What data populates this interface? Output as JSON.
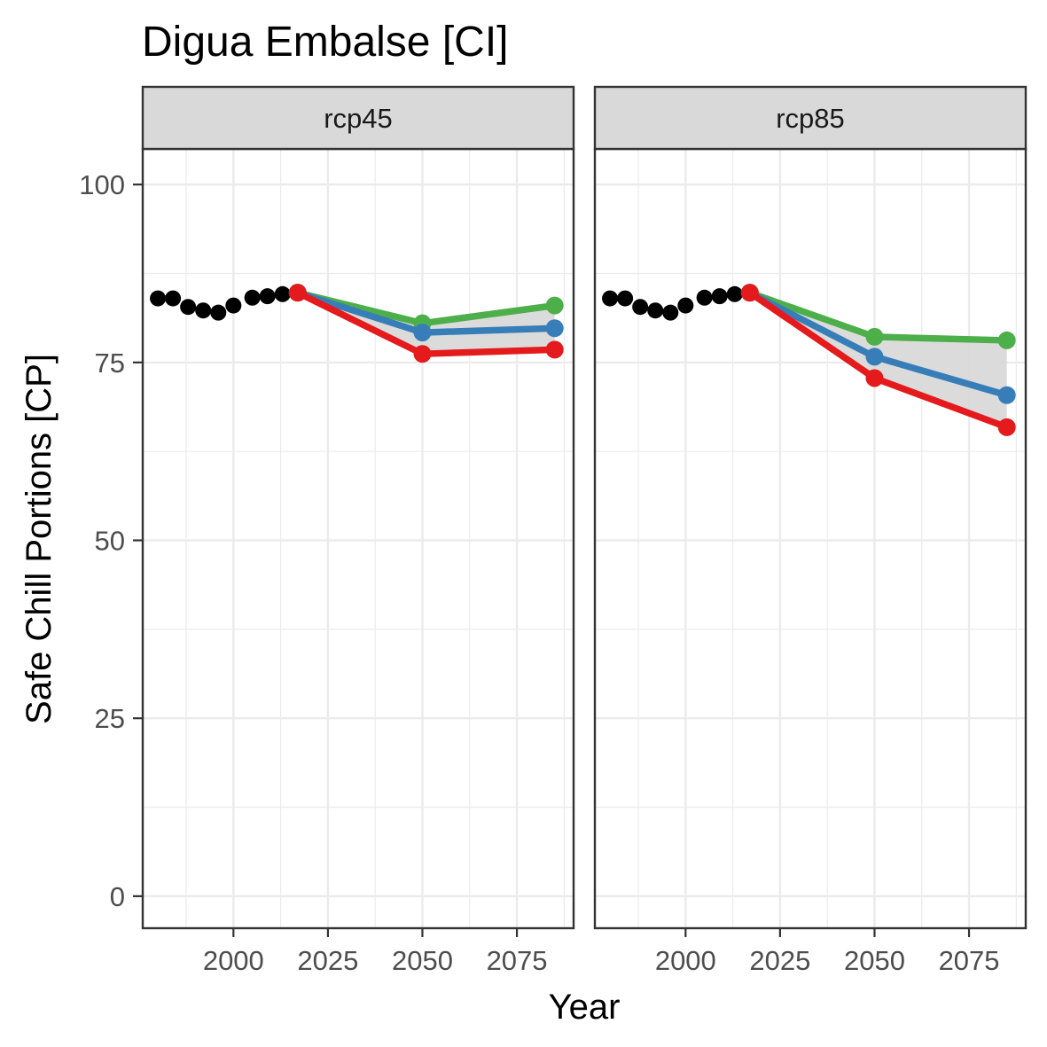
{
  "chart_data": {
    "type": "line",
    "title": "Digua Embalse [CI]",
    "xlabel": "Year",
    "ylabel": "Safe Chill Portions [CP]",
    "xlim": [
      1976,
      2090
    ],
    "ylim": [
      -4.5,
      105
    ],
    "x_ticks": [
      2000,
      2025,
      2050,
      2075
    ],
    "y_ticks": [
      0,
      25,
      50,
      75,
      100
    ],
    "grid": true,
    "colors": {
      "historic": "#000000",
      "low": "#e41a1c",
      "median": "#377eb8",
      "high": "#4daf4a",
      "ribbon": "#d9d9d9"
    },
    "panels": [
      {
        "label": "rcp45",
        "historic": {
          "x": [
            1980,
            1984,
            1988,
            1992,
            1996,
            2000,
            2005,
            2009,
            2013,
            2017
          ],
          "y": [
            84,
            84,
            82.8,
            82.3,
            82,
            83,
            84.1,
            84.3,
            84.6,
            84.8
          ]
        },
        "series": [
          {
            "color": "high",
            "x": [
              2017,
              2050,
              2085
            ],
            "y": [
              84.8,
              80.5,
              83
            ]
          },
          {
            "color": "median",
            "x": [
              2017,
              2050,
              2085
            ],
            "y": [
              84.8,
              79.2,
              79.8
            ]
          },
          {
            "color": "low",
            "x": [
              2017,
              2050,
              2085
            ],
            "y": [
              84.8,
              76.2,
              76.8
            ]
          }
        ]
      },
      {
        "label": "rcp85",
        "historic": {
          "x": [
            1980,
            1984,
            1988,
            1992,
            1996,
            2000,
            2005,
            2009,
            2013,
            2017
          ],
          "y": [
            84,
            84,
            82.8,
            82.3,
            82,
            83,
            84.1,
            84.3,
            84.6,
            84.8
          ]
        },
        "series": [
          {
            "color": "high",
            "x": [
              2017,
              2050,
              2085
            ],
            "y": [
              84.8,
              78.6,
              78.1
            ]
          },
          {
            "color": "median",
            "x": [
              2017,
              2050,
              2085
            ],
            "y": [
              84.8,
              75.8,
              70.4
            ]
          },
          {
            "color": "low",
            "x": [
              2017,
              2050,
              2085
            ],
            "y": [
              84.8,
              72.8,
              65.9
            ]
          }
        ]
      }
    ]
  }
}
